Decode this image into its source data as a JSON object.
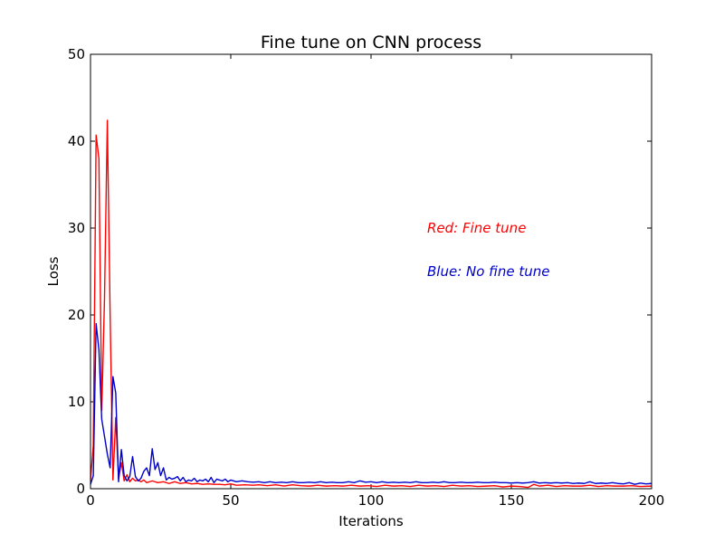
{
  "chart_data": {
    "type": "line",
    "title": "Fine tune on CNN process",
    "xlabel": "Iterations",
    "ylabel": "Loss",
    "xlim": [
      0,
      200
    ],
    "ylim": [
      0,
      50
    ],
    "xticks": [
      0,
      50,
      100,
      150,
      200
    ],
    "yticks": [
      0,
      10,
      20,
      30,
      40,
      50
    ],
    "grid": false,
    "annotations": [
      {
        "text": "Red: Fine tune",
        "x": 120,
        "y": 30,
        "color": "#ff0000"
      },
      {
        "text": "Blue: No fine tune",
        "x": 120,
        "y": 25,
        "color": "#0000cc"
      }
    ],
    "series": [
      {
        "color": "#ff0000",
        "points": [
          [
            0,
            1.0
          ],
          [
            1,
            5.0
          ],
          [
            2,
            40.7
          ],
          [
            3,
            38.0
          ],
          [
            4,
            9.0
          ],
          [
            5,
            22.0
          ],
          [
            6,
            42.4
          ],
          [
            7,
            20.0
          ],
          [
            8,
            1.0
          ],
          [
            9,
            8.2
          ],
          [
            10,
            1.2
          ],
          [
            11,
            3.0
          ],
          [
            12,
            0.9
          ],
          [
            13,
            1.6
          ],
          [
            14,
            0.8
          ],
          [
            15,
            1.2
          ],
          [
            16,
            0.9
          ],
          [
            17,
            1.0
          ],
          [
            18,
            0.8
          ],
          [
            19,
            1.0
          ],
          [
            20,
            0.7
          ],
          [
            22,
            0.9
          ],
          [
            24,
            0.7
          ],
          [
            26,
            0.8
          ],
          [
            28,
            0.6
          ],
          [
            30,
            0.8
          ],
          [
            32,
            0.6
          ],
          [
            34,
            0.7
          ],
          [
            36,
            0.55
          ],
          [
            38,
            0.6
          ],
          [
            40,
            0.5
          ],
          [
            42,
            0.55
          ],
          [
            44,
            0.5
          ],
          [
            46,
            0.5
          ],
          [
            48,
            0.45
          ],
          [
            50,
            0.55
          ],
          [
            52,
            0.4
          ],
          [
            55,
            0.45
          ],
          [
            58,
            0.4
          ],
          [
            60,
            0.45
          ],
          [
            63,
            0.35
          ],
          [
            66,
            0.45
          ],
          [
            69,
            0.3
          ],
          [
            72,
            0.45
          ],
          [
            75,
            0.35
          ],
          [
            78,
            0.3
          ],
          [
            81,
            0.4
          ],
          [
            84,
            0.3
          ],
          [
            87,
            0.35
          ],
          [
            90,
            0.3
          ],
          [
            93,
            0.4
          ],
          [
            96,
            0.3
          ],
          [
            99,
            0.35
          ],
          [
            102,
            0.25
          ],
          [
            105,
            0.4
          ],
          [
            108,
            0.3
          ],
          [
            111,
            0.35
          ],
          [
            114,
            0.25
          ],
          [
            117,
            0.4
          ],
          [
            120,
            0.3
          ],
          [
            123,
            0.35
          ],
          [
            126,
            0.25
          ],
          [
            129,
            0.4
          ],
          [
            132,
            0.3
          ],
          [
            135,
            0.35
          ],
          [
            138,
            0.25
          ],
          [
            141,
            0.3
          ],
          [
            144,
            0.35
          ],
          [
            147,
            0.2
          ],
          [
            150,
            0.3
          ],
          [
            153,
            0.25
          ],
          [
            156,
            0.15
          ],
          [
            158,
            0.5
          ],
          [
            160,
            0.3
          ],
          [
            163,
            0.4
          ],
          [
            166,
            0.25
          ],
          [
            169,
            0.35
          ],
          [
            172,
            0.3
          ],
          [
            175,
            0.3
          ],
          [
            178,
            0.4
          ],
          [
            181,
            0.25
          ],
          [
            184,
            0.35
          ],
          [
            187,
            0.3
          ],
          [
            190,
            0.3
          ],
          [
            193,
            0.35
          ],
          [
            196,
            0.25
          ],
          [
            200,
            0.3
          ]
        ]
      },
      {
        "color": "#0000cc",
        "points": [
          [
            0,
            0.5
          ],
          [
            1,
            1.5
          ],
          [
            2,
            19.0
          ],
          [
            3,
            16.0
          ],
          [
            4,
            8.0
          ],
          [
            5,
            6.0
          ],
          [
            6,
            4.0
          ],
          [
            7,
            2.4
          ],
          [
            8,
            12.9
          ],
          [
            9,
            11.0
          ],
          [
            10,
            0.8
          ],
          [
            11,
            4.5
          ],
          [
            12,
            1.5
          ],
          [
            13,
            0.9
          ],
          [
            14,
            1.4
          ],
          [
            15,
            3.7
          ],
          [
            16,
            1.4
          ],
          [
            17,
            0.9
          ],
          [
            18,
            1.2
          ],
          [
            19,
            2.0
          ],
          [
            20,
            2.4
          ],
          [
            21,
            1.5
          ],
          [
            22,
            4.6
          ],
          [
            23,
            2.2
          ],
          [
            24,
            3.0
          ],
          [
            25,
            1.5
          ],
          [
            26,
            2.4
          ],
          [
            27,
            1.0
          ],
          [
            28,
            1.3
          ],
          [
            29,
            1.1
          ],
          [
            30,
            1.2
          ],
          [
            31,
            1.4
          ],
          [
            32,
            0.9
          ],
          [
            33,
            1.3
          ],
          [
            34,
            0.8
          ],
          [
            35,
            1.0
          ],
          [
            36,
            0.9
          ],
          [
            37,
            1.2
          ],
          [
            38,
            0.8
          ],
          [
            39,
            1.0
          ],
          [
            40,
            0.9
          ],
          [
            41,
            1.1
          ],
          [
            42,
            0.8
          ],
          [
            43,
            1.3
          ],
          [
            44,
            0.7
          ],
          [
            45,
            1.1
          ],
          [
            46,
            1.0
          ],
          [
            47,
            0.9
          ],
          [
            48,
            1.1
          ],
          [
            49,
            0.8
          ],
          [
            50,
            1.0
          ],
          [
            52,
            0.8
          ],
          [
            54,
            0.9
          ],
          [
            56,
            0.8
          ],
          [
            58,
            0.75
          ],
          [
            60,
            0.8
          ],
          [
            62,
            0.7
          ],
          [
            64,
            0.8
          ],
          [
            66,
            0.7
          ],
          [
            68,
            0.75
          ],
          [
            70,
            0.7
          ],
          [
            72,
            0.8
          ],
          [
            74,
            0.7
          ],
          [
            76,
            0.7
          ],
          [
            78,
            0.75
          ],
          [
            80,
            0.7
          ],
          [
            82,
            0.8
          ],
          [
            84,
            0.7
          ],
          [
            86,
            0.75
          ],
          [
            88,
            0.7
          ],
          [
            90,
            0.7
          ],
          [
            92,
            0.8
          ],
          [
            94,
            0.7
          ],
          [
            96,
            0.9
          ],
          [
            98,
            0.75
          ],
          [
            100,
            0.8
          ],
          [
            102,
            0.7
          ],
          [
            104,
            0.8
          ],
          [
            106,
            0.7
          ],
          [
            108,
            0.75
          ],
          [
            110,
            0.7
          ],
          [
            112,
            0.75
          ],
          [
            114,
            0.7
          ],
          [
            116,
            0.8
          ],
          [
            118,
            0.7
          ],
          [
            120,
            0.7
          ],
          [
            122,
            0.75
          ],
          [
            124,
            0.7
          ],
          [
            126,
            0.8
          ],
          [
            128,
            0.7
          ],
          [
            130,
            0.7
          ],
          [
            132,
            0.75
          ],
          [
            134,
            0.7
          ],
          [
            136,
            0.7
          ],
          [
            138,
            0.75
          ],
          [
            140,
            0.7
          ],
          [
            142,
            0.7
          ],
          [
            144,
            0.75
          ],
          [
            146,
            0.7
          ],
          [
            148,
            0.7
          ],
          [
            150,
            0.65
          ],
          [
            152,
            0.7
          ],
          [
            154,
            0.65
          ],
          [
            156,
            0.7
          ],
          [
            158,
            0.8
          ],
          [
            160,
            0.65
          ],
          [
            162,
            0.7
          ],
          [
            164,
            0.65
          ],
          [
            166,
            0.7
          ],
          [
            168,
            0.65
          ],
          [
            170,
            0.7
          ],
          [
            172,
            0.6
          ],
          [
            174,
            0.65
          ],
          [
            176,
            0.6
          ],
          [
            178,
            0.8
          ],
          [
            180,
            0.6
          ],
          [
            182,
            0.65
          ],
          [
            184,
            0.6
          ],
          [
            186,
            0.7
          ],
          [
            188,
            0.6
          ],
          [
            190,
            0.55
          ],
          [
            192,
            0.7
          ],
          [
            194,
            0.5
          ],
          [
            196,
            0.65
          ],
          [
            198,
            0.55
          ],
          [
            200,
            0.6
          ]
        ]
      }
    ]
  }
}
